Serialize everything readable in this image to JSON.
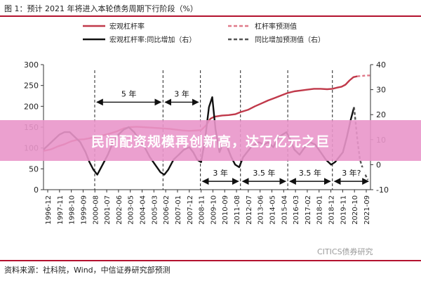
{
  "page": {
    "title": "图 1：预计 2021 年将进入本轮债务周期下行阶段（%）",
    "source": "资料来源：社科院，Wind，中信证券研究部预测",
    "watermark": "CITICS债券研究",
    "banner": "民间配资规模再创新高，达万亿元之巨"
  },
  "chart_data": {
    "type": "line",
    "title": "图 1：预计 2021 年将进入本轮债务周期下行阶段（%）",
    "legend": {
      "placement": "top",
      "entries": [
        "宏观杠杆率",
        "杠杆率预测值",
        "宏观杠杆率:同比增加（右）",
        "同比增加预测值（右）"
      ]
    },
    "left_axis": {
      "ylim": [
        0,
        300
      ],
      "ticks": [
        0,
        50,
        100,
        150,
        200,
        250,
        300
      ]
    },
    "right_axis": {
      "ylim": [
        -10,
        40
      ],
      "ticks": [
        -10,
        0,
        10,
        20,
        30,
        40
      ]
    },
    "x_tick_labels": [
      "1996-12",
      "1997-11",
      "1998-10",
      "1999-09",
      "2000-08",
      "2001-07",
      "2002-06",
      "2003-05",
      "2004-04",
      "2005-03",
      "2006-02",
      "2007-01",
      "2007-12",
      "2008-11",
      "2009-10",
      "2010-09",
      "2011-08",
      "2012-07",
      "2013-06",
      "2014-05",
      "2015-04",
      "2016-03",
      "2017-02",
      "2018-01",
      "2018-12",
      "2019-11",
      "2020-10",
      "2021-09"
    ],
    "x_range": [
      1996.9,
      2021.8
    ],
    "series": [
      {
        "name": "宏观杠杆率",
        "axis": "left",
        "color": "#c0394a",
        "style": "solid",
        "x": [
          1996.9,
          1997.5,
          1998.0,
          1998.5,
          1999.0,
          1999.5,
          2000.0,
          2000.5,
          2001.0,
          2001.5,
          2002.0,
          2002.5,
          2003.0,
          2003.5,
          2004.0,
          2004.5,
          2005.0,
          2005.5,
          2006.0,
          2006.5,
          2007.0,
          2007.5,
          2008.0,
          2008.5,
          2008.9,
          2009.3,
          2009.6,
          2009.9,
          2010.5,
          2011.0,
          2011.5,
          2011.9,
          2012.5,
          2013.0,
          2013.5,
          2014.0,
          2014.5,
          2015.0,
          2015.5,
          2016.0,
          2016.5,
          2017.0,
          2017.5,
          2018.0,
          2018.5,
          2018.9,
          2019.3,
          2019.6,
          2019.9,
          2020.2,
          2020.5,
          2020.8
        ],
        "y": [
          93,
          97,
          104,
          109,
          116,
          120,
          121,
          124,
          128,
          131,
          135,
          140,
          147,
          150,
          151,
          150,
          149,
          148,
          147,
          146,
          144,
          142,
          141,
          142,
          143,
          155,
          170,
          175,
          178,
          179,
          181,
          186,
          192,
          200,
          207,
          214,
          220,
          226,
          232,
          236,
          238,
          240,
          242,
          242,
          241,
          242,
          245,
          247,
          252,
          262,
          270,
          272
        ]
      },
      {
        "name": "杠杆率预测值",
        "axis": "left",
        "color": "#e07a8a",
        "style": "dashed",
        "x": [
          2020.8,
          2021.2,
          2021.5,
          2021.8
        ],
        "y": [
          272,
          273,
          274,
          274
        ]
      },
      {
        "name": "宏观杠杆率:同比增加（右）",
        "axis": "right",
        "color": "#111111",
        "style": "solid",
        "x": [
          1996.9,
          1997.3,
          1997.7,
          1998.1,
          1998.5,
          1998.9,
          1999.3,
          1999.7,
          2000.1,
          2000.4,
          2000.7,
          2001.0,
          2001.4,
          2001.8,
          2002.2,
          2002.6,
          2003.0,
          2003.4,
          2003.8,
          2004.2,
          2004.6,
          2005.0,
          2005.4,
          2005.8,
          2006.1,
          2006.4,
          2006.8,
          2007.2,
          2007.6,
          2008.0,
          2008.3,
          2008.6,
          2008.9,
          2009.2,
          2009.5,
          2009.75,
          2010.0,
          2010.3,
          2010.6,
          2010.9,
          2011.2,
          2011.5,
          2011.8,
          2012.1,
          2012.4,
          2012.7,
          2013.0,
          2013.3,
          2013.7,
          2014.0,
          2014.4,
          2014.8,
          2015.1,
          2015.4,
          2015.7,
          2016.0,
          2016.4,
          2016.8,
          2017.2,
          2017.6,
          2018.0,
          2018.4,
          2018.8,
          2019.1,
          2019.4,
          2019.7,
          2020.0,
          2020.3,
          2020.55
        ],
        "y": [
          6,
          8,
          10,
          12,
          13,
          13,
          11,
          9,
          5,
          1,
          -2,
          -4,
          0,
          4,
          9,
          12,
          14,
          15,
          13,
          10,
          7,
          3,
          0,
          -3,
          -4,
          -2,
          2,
          4,
          6,
          7,
          5,
          2,
          1,
          10,
          23,
          27,
          14,
          5,
          9,
          7,
          3,
          0,
          -1,
          3,
          5,
          7,
          8,
          9,
          8,
          9,
          7,
          11,
          12,
          13,
          10,
          6,
          4,
          7,
          9,
          8,
          5,
          2,
          0,
          1,
          3,
          5,
          11,
          18,
          23
        ]
      },
      {
        "name": "同比增加预测值（右）",
        "axis": "right",
        "color": "#555555",
        "style": "dashed",
        "x": [
          2020.55,
          2020.8,
          2021.0,
          2021.3,
          2021.6
        ],
        "y": [
          23,
          10,
          2,
          -3,
          -6
        ]
      }
    ],
    "cycle_dividers_x": [
      2000.8,
      2006.0,
      2008.85,
      2011.9,
      2015.5,
      2018.9
    ],
    "annotations": [
      {
        "text": "5 年",
        "x_from": 2000.8,
        "x_to": 2006.0,
        "y_left": 210,
        "y_label_left": 225
      },
      {
        "text": "3 年",
        "x_from": 2006.0,
        "x_to": 2008.85,
        "y_left": 210,
        "y_label_left": 225
      },
      {
        "text": "3 年",
        "x_from": 2008.85,
        "x_to": 2011.9,
        "y_left": 20,
        "y_label_left": 35
      },
      {
        "text": "3.5 年",
        "x_from": 2011.9,
        "x_to": 2015.5,
        "y_left": 20,
        "y_label_left": 35
      },
      {
        "text": "3.5 年",
        "x_from": 2015.5,
        "x_to": 2018.9,
        "y_left": 20,
        "y_label_left": 35
      },
      {
        "text": "3 年?",
        "x_from": 2018.9,
        "x_to": 2021.8,
        "y_left": 20,
        "y_label_left": 35
      }
    ],
    "grid": false
  }
}
